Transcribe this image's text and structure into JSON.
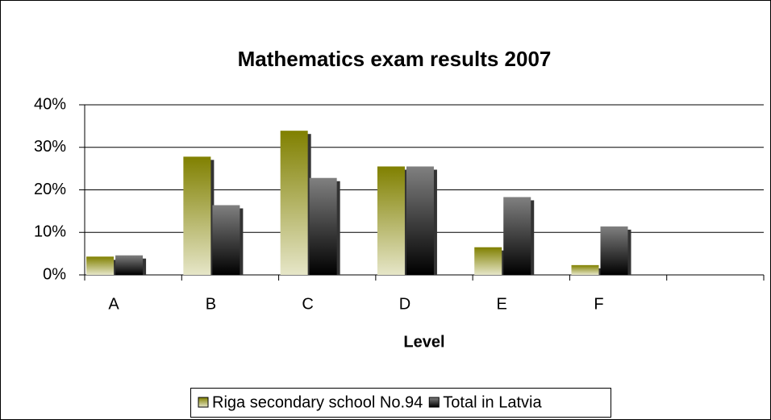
{
  "chart_data": {
    "type": "bar",
    "title": "Mathematics exam results 2007",
    "x_label": "Level",
    "categories": [
      "A",
      "B",
      "C",
      "D",
      "E",
      "F",
      null
    ],
    "series": [
      {
        "name": "Riga secondary school No.94",
        "color": "#808000",
        "values": [
          4.3,
          27.8,
          33.9,
          25.5,
          6.5,
          2.3,
          null
        ]
      },
      {
        "name": "Total in Latvia",
        "color": "#808080",
        "values": [
          4.6,
          16.4,
          22.8,
          25.5,
          18.3,
          11.4,
          null
        ]
      }
    ],
    "ylim": [
      0,
      40
    ],
    "yticks": [
      {
        "value": 0,
        "label": "0%"
      },
      {
        "value": 10,
        "label": "10%"
      },
      {
        "value": 20,
        "label": "20%"
      },
      {
        "value": 30,
        "label": "30%"
      },
      {
        "value": 40,
        "label": "40%"
      }
    ],
    "grid": true,
    "legend": "bottom"
  }
}
